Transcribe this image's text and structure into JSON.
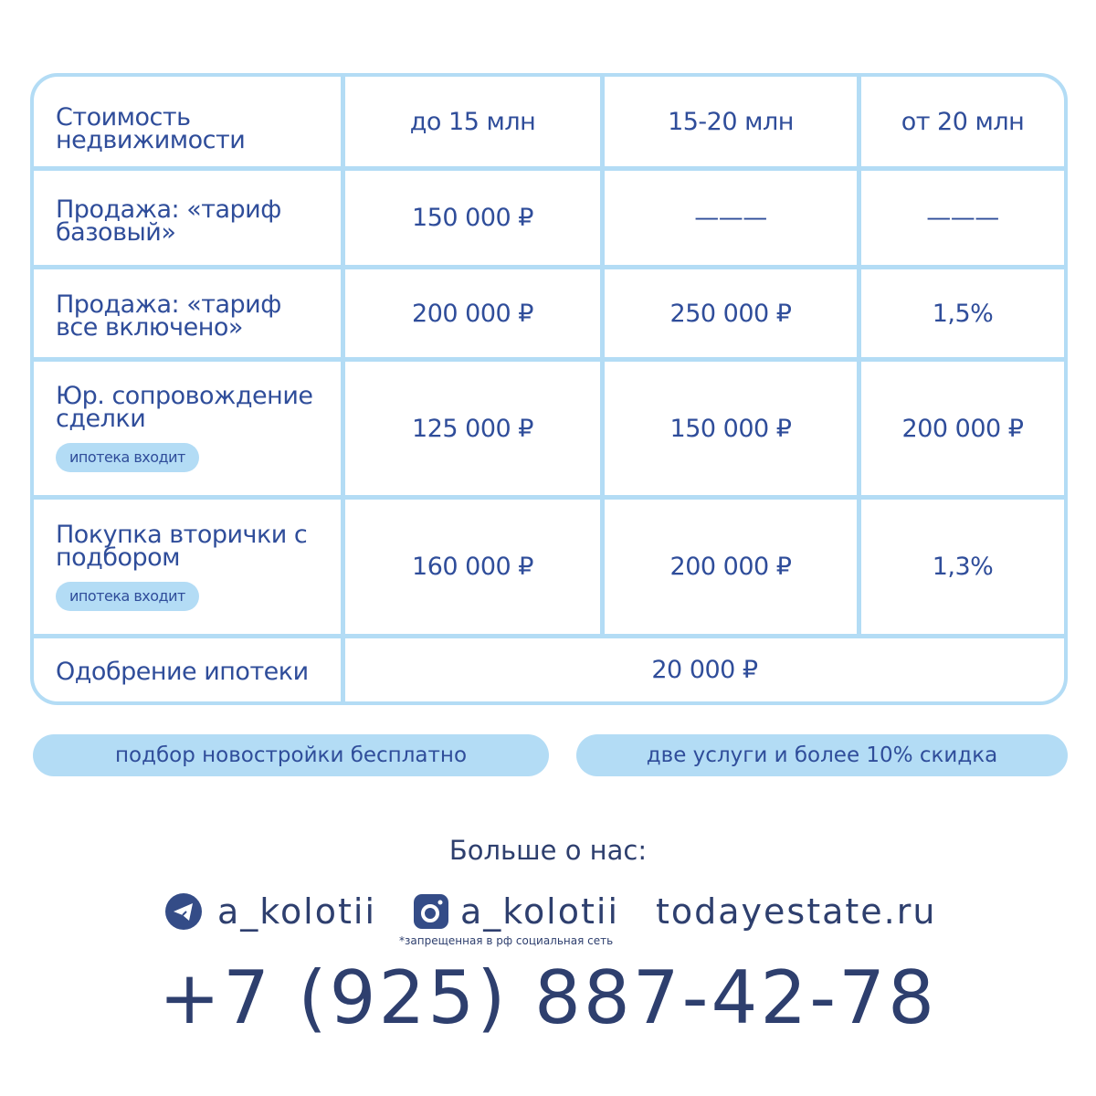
{
  "table": {
    "header": {
      "label": "Стоимость недвижимости",
      "cols": [
        "до 15 млн",
        "15-20 млн",
        "от 20 млн"
      ]
    },
    "rows": [
      {
        "label": "Продажа: «тариф базовый»",
        "values": [
          "150 000 ₽",
          "———",
          "———"
        ]
      },
      {
        "label": "Продажа: «тариф все включено»",
        "values": [
          "200 000 ₽",
          "250 000 ₽",
          "1,5%"
        ]
      },
      {
        "label": "Юр. сопровождение сделки",
        "tag": "ипотека входит",
        "values": [
          "125 000 ₽",
          "150 000 ₽",
          "200 000 ₽"
        ]
      },
      {
        "label": "Покупка вторички с подбором",
        "tag": "ипотека входит",
        "values": [
          "160 000 ₽",
          "200 000 ₽",
          "1,3%"
        ]
      },
      {
        "label": "Одобрение ипотеки",
        "value": "20 000 ₽"
      }
    ]
  },
  "pills": [
    "подбор новостройки бесплатно",
    "две услуги и более 10% скидка"
  ],
  "footer": {
    "more": "Больше о нас:",
    "telegram": "a_kolotii",
    "instagram": "a_kolotii",
    "site": "todayestate.ru",
    "note": "*запрещенная в рф социальная сеть",
    "phone": "+7 (925) 887-42-78"
  },
  "colors": {
    "accent": "#b3dcf5",
    "text": "#2f4d9a",
    "footer": "#2e3f6e"
  }
}
